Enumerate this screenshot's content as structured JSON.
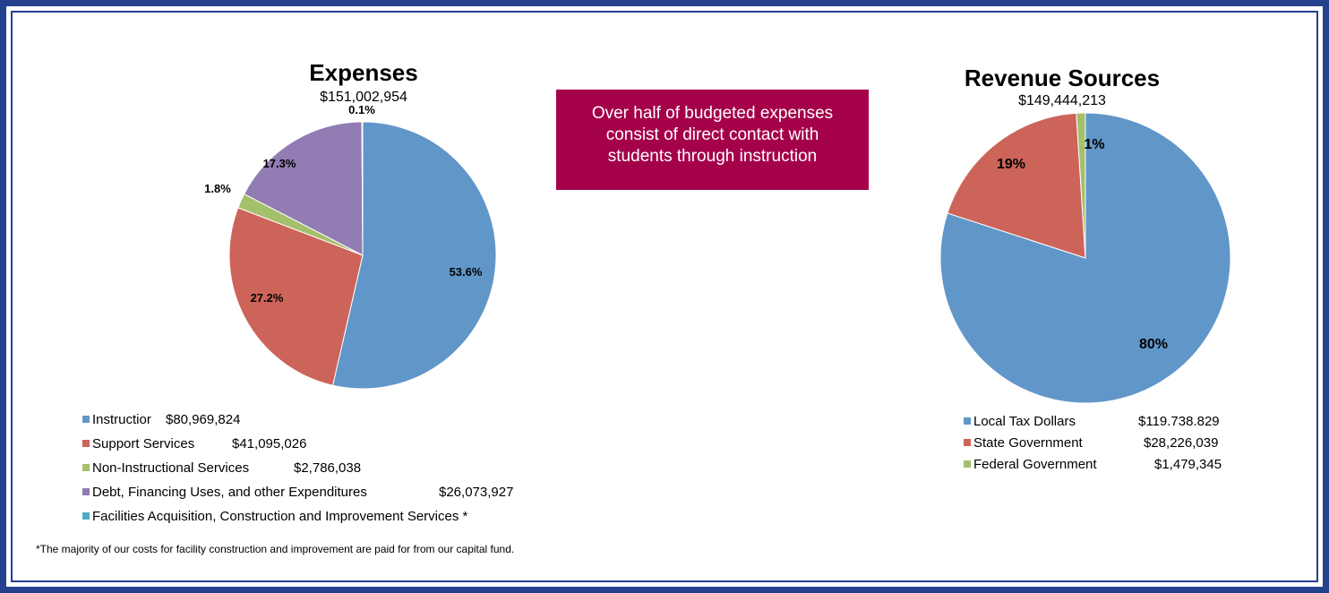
{
  "colors": {
    "frame": "#24418e",
    "callout_bg": "#a5004a",
    "blue": "#6196c9",
    "red": "#cd6459",
    "green": "#a4c06c",
    "purple": "#917cb3",
    "teal": "#4bacc6"
  },
  "callout": {
    "lines": [
      "Over half of budgeted expenses",
      "consist of direct contact with",
      "students through instruction"
    ]
  },
  "footnote": "*The majority of our costs for facility construction and improvement are paid for from our capital fund.",
  "chart_data": [
    {
      "type": "pie",
      "title": "Expenses",
      "total": "$151,002,954",
      "slices": [
        {
          "name": "Instruction",
          "legend_label": "Instructior",
          "amount": "$80,969,824",
          "percent": 53.6,
          "label": "53.6%",
          "color": "#6196c9"
        },
        {
          "name": "Support Services",
          "legend_label": "Support Services",
          "amount": "$41,095,026",
          "percent": 27.2,
          "label": "27.2%",
          "color": "#cd6459"
        },
        {
          "name": "Non-Instructional Services",
          "legend_label": "Non-Instructional Services",
          "amount": "$2,786,038",
          "percent": 1.8,
          "label": "1.8%",
          "color": "#a4c06c"
        },
        {
          "name": "Debt, Financing Uses, and other Expenditures",
          "legend_label": "Debt, Financing Uses, and other Expenditures",
          "amount": "$26,073,927",
          "percent": 17.3,
          "label": "17.3%",
          "color": "#917cb3"
        },
        {
          "name": "Facilities Acquisition, Construction and Improvement Services *",
          "legend_label": "Facilities Acquisition, Construction and Improvement Services *",
          "amount": "",
          "percent": 0.1,
          "label": "0.1%",
          "color": "#4bacc6"
        }
      ]
    },
    {
      "type": "pie",
      "title": "Revenue Sources",
      "total": "$149,444,213",
      "slices": [
        {
          "name": "Local Tax Dollars",
          "legend_label": "Local Tax Dollars",
          "amount": "$119.738.829",
          "percent": 80,
          "label": "80%",
          "color": "#6196c9"
        },
        {
          "name": "State Government",
          "legend_label": "State Government",
          "amount": "$28,226,039",
          "percent": 19,
          "label": "19%",
          "color": "#cd6459"
        },
        {
          "name": "Federal Government",
          "legend_label": "Federal Government",
          "amount": "$1,479,345",
          "percent": 1,
          "label": "1%",
          "color": "#a4c06c"
        }
      ]
    }
  ]
}
